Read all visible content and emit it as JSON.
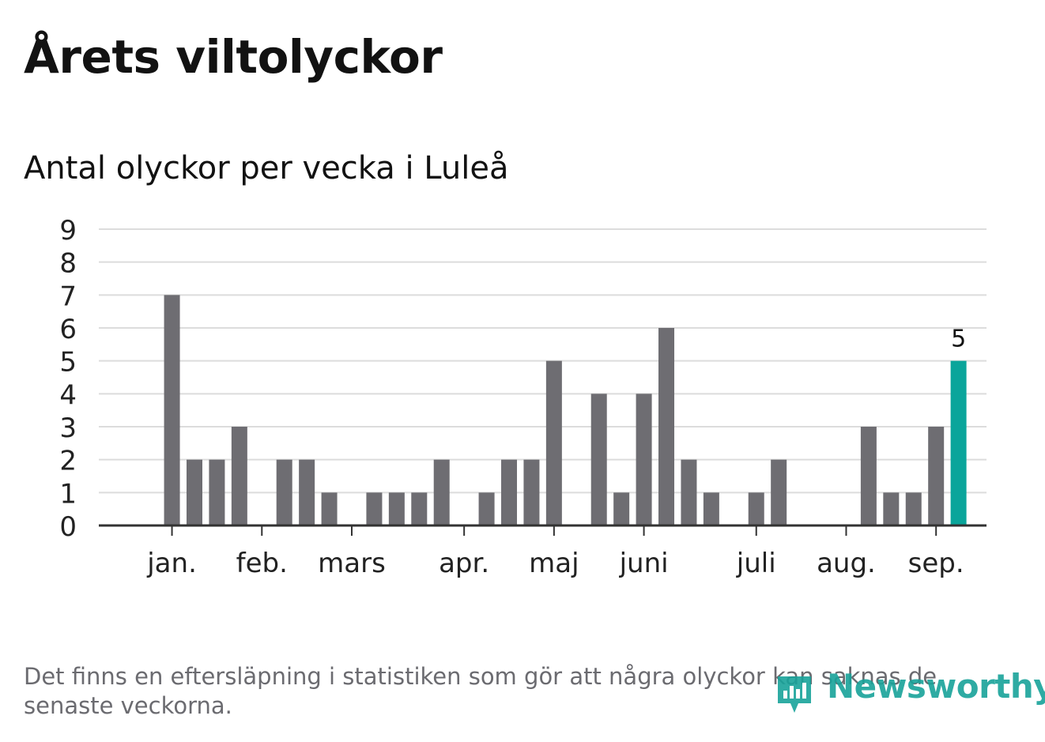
{
  "header": {
    "title": "Årets viltolyckor",
    "subtitle": "Antal olyckor per vecka i Luleå"
  },
  "footer": {
    "note": "Det finns en eftersläpning i statistiken som gör att några olyckor kan saknas de senaste veckorna.",
    "brand": "Newsworthy"
  },
  "colors": {
    "bar": "#6e6d72",
    "highlight": "#0aa59b",
    "grid": "#dcdcdc",
    "axis": "#333333",
    "brand": "#18a39a"
  },
  "chart_data": {
    "type": "bar",
    "xlabel": "",
    "ylabel": "",
    "ylim": [
      0,
      9
    ],
    "yticks": [
      0,
      1,
      2,
      3,
      4,
      5,
      6,
      7,
      8,
      9
    ],
    "grid": true,
    "values": [
      0,
      0,
      7,
      2,
      2,
      3,
      0,
      2,
      2,
      1,
      0,
      1,
      1,
      1,
      2,
      0,
      1,
      2,
      2,
      5,
      0,
      4,
      1,
      4,
      6,
      2,
      1,
      0,
      1,
      2,
      0,
      0,
      0,
      3,
      1,
      1,
      3,
      5
    ],
    "highlight_index": 37,
    "highlight_label": "5",
    "month_labels": [
      {
        "label": "jan.",
        "week_index": 2
      },
      {
        "label": "feb.",
        "week_index": 6
      },
      {
        "label": "mars",
        "week_index": 10
      },
      {
        "label": "apr.",
        "week_index": 15
      },
      {
        "label": "maj",
        "week_index": 19
      },
      {
        "label": "juni",
        "week_index": 23
      },
      {
        "label": "juli",
        "week_index": 28
      },
      {
        "label": "aug.",
        "week_index": 32
      },
      {
        "label": "sep.",
        "week_index": 36
      }
    ]
  }
}
